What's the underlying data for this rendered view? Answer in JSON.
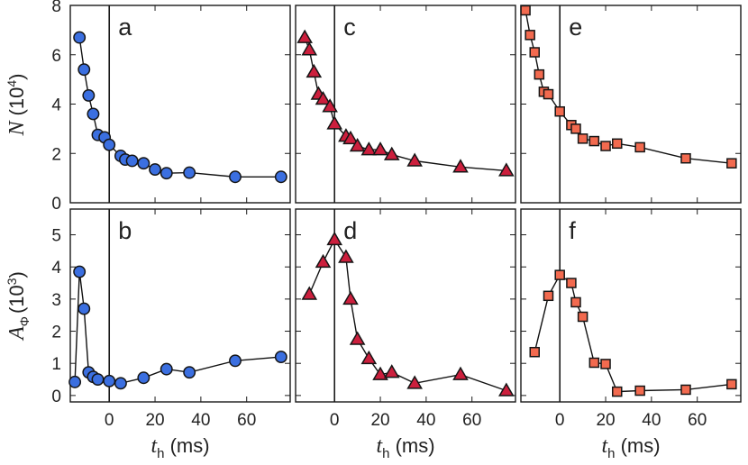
{
  "chart_data": [
    {
      "panel": "a",
      "type": "line",
      "marker": "circle",
      "color": "#3b6fe0",
      "x": [
        -13,
        -11,
        -9,
        -7,
        -5,
        -2,
        0,
        5,
        7,
        10,
        15,
        20,
        25,
        35,
        55,
        75
      ],
      "y": [
        6.7,
        5.4,
        4.35,
        3.6,
        2.75,
        2.65,
        2.35,
        1.9,
        1.75,
        1.7,
        1.6,
        1.35,
        1.2,
        1.22,
        1.05,
        1.05
      ],
      "ylabel": "N (10⁴)",
      "xlabel": "",
      "xlim": [
        -17,
        79
      ],
      "ylim": [
        0,
        8
      ]
    },
    {
      "panel": "c",
      "type": "line",
      "marker": "triangle",
      "color": "#cc1f3d",
      "x": [
        -13,
        -11,
        -9,
        -7,
        -5,
        -2,
        0,
        5,
        7,
        10,
        15,
        20,
        25,
        35,
        55,
        75
      ],
      "y": [
        6.7,
        6.2,
        5.3,
        4.4,
        4.2,
        3.9,
        3.2,
        2.7,
        2.6,
        2.3,
        2.15,
        2.15,
        1.95,
        1.7,
        1.45,
        1.3
      ],
      "ylabel": "",
      "xlabel": "",
      "xlim": [
        -17,
        79
      ],
      "ylim": [
        0,
        8
      ]
    },
    {
      "panel": "e",
      "type": "line",
      "marker": "square",
      "color": "#f26a4f",
      "x": [
        -15,
        -13,
        -11,
        -9,
        -7,
        -5,
        0,
        5,
        7,
        10,
        15,
        20,
        25,
        35,
        55,
        75
      ],
      "y": [
        7.8,
        6.8,
        6.1,
        5.2,
        4.5,
        4.4,
        3.7,
        3.15,
        3.0,
        2.6,
        2.5,
        2.3,
        2.4,
        2.25,
        1.8,
        1.6
      ],
      "ylabel": "",
      "xlabel": "",
      "xlim": [
        -17,
        79
      ],
      "ylim": [
        0,
        8
      ]
    },
    {
      "panel": "b",
      "type": "line",
      "marker": "circle",
      "color": "#3b6fe0",
      "x": [
        -15,
        -13,
        -11,
        -9,
        -7,
        -5,
        0,
        5,
        15,
        25,
        35,
        55,
        75
      ],
      "y": [
        0.42,
        3.85,
        2.7,
        0.72,
        0.58,
        0.5,
        0.45,
        0.38,
        0.55,
        0.82,
        0.72,
        1.08,
        1.2
      ],
      "ylabel": "A_Φ (10³)",
      "xlabel": "t_h (ms)",
      "xlim": [
        -17,
        79
      ],
      "ylim": [
        -0.2,
        5.8
      ]
    },
    {
      "panel": "d",
      "type": "line",
      "marker": "triangle",
      "color": "#cc1f3d",
      "x": [
        -11,
        -5,
        0,
        5,
        7,
        10,
        15,
        20,
        25,
        35,
        55,
        75
      ],
      "y": [
        3.15,
        4.15,
        4.85,
        4.3,
        3.0,
        1.75,
        1.15,
        0.65,
        0.72,
        0.38,
        0.65,
        0.15
      ],
      "ylabel": "",
      "xlabel": "t_h (ms)",
      "xlim": [
        -17,
        79
      ],
      "ylim": [
        -0.2,
        5.8
      ]
    },
    {
      "panel": "f",
      "type": "line",
      "marker": "square",
      "color": "#f26a4f",
      "x": [
        -11,
        -5,
        0,
        5,
        7,
        10,
        15,
        20,
        25,
        35,
        55,
        75
      ],
      "y": [
        1.35,
        3.1,
        3.75,
        3.5,
        2.9,
        2.45,
        1.02,
        0.98,
        0.12,
        0.15,
        0.18,
        0.35
      ],
      "ylabel": "",
      "xlabel": "t_h (ms)",
      "xlim": [
        -17,
        79
      ],
      "ylim": [
        -0.2,
        5.8
      ]
    }
  ],
  "ticks": {
    "top_y": [
      "0",
      "2",
      "4",
      "6",
      "8"
    ],
    "bottom_y": [
      "0",
      "1",
      "2",
      "3",
      "4",
      "5"
    ],
    "x": [
      "0",
      "20",
      "40",
      "60"
    ]
  },
  "labels": {
    "top_ylabel_var": "N",
    "top_ylabel_unit": "(10",
    "top_ylabel_exp": "4",
    "top_ylabel_close": ")",
    "bottom_ylabel_var": "A",
    "bottom_ylabel_sub": "Φ",
    "bottom_ylabel_unit": "(10",
    "bottom_ylabel_exp": "3",
    "bottom_ylabel_close": ")",
    "xlabel_var": "t",
    "xlabel_sub": "h",
    "xlabel_unit": " (ms)"
  }
}
